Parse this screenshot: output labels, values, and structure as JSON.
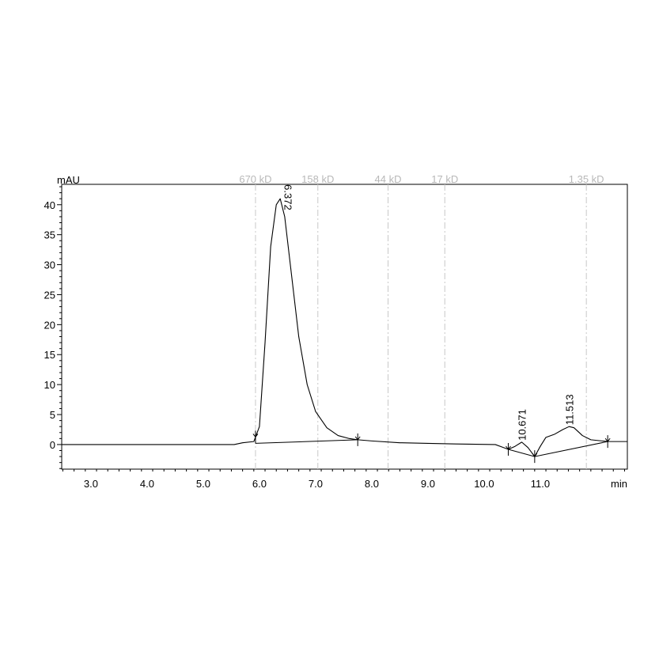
{
  "chart_data": {
    "type": "line",
    "ylabel": "mAU",
    "xlabel": "min",
    "xlim": [
      2.48,
      12.55
    ],
    "ylim": [
      -4.1,
      43.4
    ],
    "x_ticks": [
      3.0,
      4.0,
      5.0,
      6.0,
      7.0,
      8.0,
      9.0,
      10.0,
      11.0
    ],
    "x_tick_labels": [
      "3.0",
      "4.0",
      "5.0",
      "6.0",
      "7.0",
      "8.0",
      "9.0",
      "10.0",
      "11.0"
    ],
    "y_ticks": [
      0,
      5,
      10,
      15,
      20,
      25,
      30,
      35,
      40
    ],
    "y_tick_labels": [
      "0",
      "5",
      "10",
      "15",
      "20",
      "25",
      "30",
      "35",
      "40"
    ],
    "markers": [
      {
        "label": "670 kD",
        "x": 5.93
      },
      {
        "label": "158 kD",
        "x": 7.04
      },
      {
        "label": "44 kD",
        "x": 8.29
      },
      {
        "label": "17 kD",
        "x": 9.3
      },
      {
        "label": "1.35 kD",
        "x": 11.82
      }
    ],
    "series": [
      {
        "x": [
          2.48,
          5.55,
          5.7,
          5.9,
          6.0,
          6.1,
          6.2,
          6.3,
          6.37,
          6.45,
          6.55,
          6.7,
          6.85,
          7.0,
          7.2,
          7.4,
          7.6,
          7.75,
          8.0,
          8.5,
          9.0,
          9.5,
          10.2,
          10.43,
          10.55,
          10.67,
          10.78,
          10.9,
          11.0,
          11.1,
          11.25,
          11.4,
          11.513,
          11.6,
          11.75,
          11.9,
          12.1,
          12.2,
          12.55
        ],
        "y": [
          0,
          0,
          0.3,
          0.5,
          3,
          17,
          33,
          40,
          41,
          38,
          30,
          18,
          10,
          5.5,
          2.8,
          1.5,
          1.0,
          0.8,
          0.6,
          0.3,
          0.2,
          0.1,
          0,
          -0.8,
          -0.3,
          0.4,
          -0.5,
          -2,
          -0.3,
          1.2,
          1.7,
          2.5,
          3.0,
          2.8,
          1.5,
          0.8,
          0.6,
          0.5,
          0.5
        ]
      }
    ],
    "peak_labels": [
      {
        "label": "6.372",
        "x": 6.372,
        "y": 41
      },
      {
        "label": "10.671",
        "x": 10.671,
        "y": 0.4
      },
      {
        "label": "11.513",
        "x": 11.513,
        "y": 3.0
      }
    ],
    "integration_baselines": [
      {
        "x": [
          5.93,
          7.75
        ],
        "y": [
          0.2,
          0.8
        ]
      },
      {
        "x": [
          10.43,
          10.9,
          12.2
        ],
        "y": [
          -0.8,
          -2,
          0.5
        ]
      }
    ],
    "integration_marks": [
      5.93,
      7.75,
      10.43,
      10.9,
      12.2
    ],
    "grid": false
  }
}
